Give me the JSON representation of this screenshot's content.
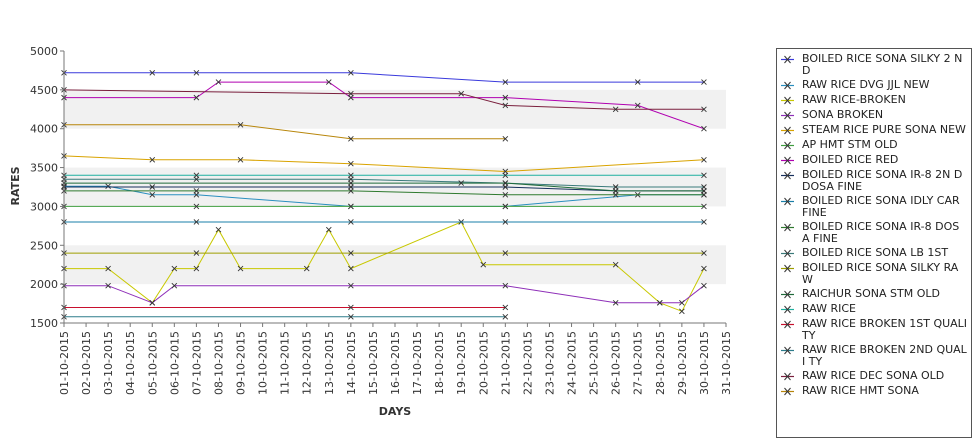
{
  "chart_data": {
    "type": "line",
    "title": "",
    "xlabel": "DAYS",
    "ylabel": "RATES",
    "ylim": [
      1500,
      5000
    ],
    "yticks": [
      1500,
      2000,
      2500,
      3000,
      3500,
      4000,
      4500,
      5000
    ],
    "x_tick_labels": [
      "01-10-2015",
      "02-10-2015",
      "03-10-2015",
      "04-10-2015",
      "05-10-2015",
      "06-10-2015",
      "07-10-2015",
      "08-10-2015",
      "09-10-2015",
      "10-10-2015",
      "11-10-2015",
      "12-10-2015",
      "13-10-2015",
      "14-10-2015",
      "15-10-2015",
      "16-10-2015",
      "17-10-2015",
      "18-10-2015",
      "19-10-2015",
      "20-10-2015",
      "21-10-2015",
      "22-10-2015",
      "23-10-2015",
      "24-10-2015",
      "25-10-2015",
      "26-10-2015",
      "27-10-2015",
      "28-10-2015",
      "29-10-2015",
      "30-10-2015",
      "31-10-2015"
    ],
    "x_unit": "day of October 2015",
    "grid": "alternating horizontal bands",
    "legend_position": "right",
    "series": [
      {
        "name": "BOILED RICE SONA SILKY 2 ND",
        "color": "#3a3adc",
        "days": [
          1,
          5,
          7,
          14,
          21,
          27,
          30
        ],
        "values": [
          4720,
          4720,
          4720,
          4720,
          4600,
          4600,
          4600
        ]
      },
      {
        "name": "RAW RICE DVG JJL NEW",
        "color": "#2a8fbf",
        "days": [
          1,
          3,
          5,
          7,
          14,
          21,
          27,
          30
        ],
        "values": [
          3260,
          3260,
          3150,
          3150,
          3000,
          3000,
          3150,
          3150
        ]
      },
      {
        "name": "RAW RICE-BROKEN",
        "color": "#c8c800",
        "days": [
          1,
          3,
          5,
          6,
          7,
          8,
          9,
          12,
          13,
          14,
          19,
          20,
          26,
          28,
          29,
          30
        ],
        "values": [
          2200,
          2200,
          1760,
          2200,
          2200,
          2700,
          2200,
          2200,
          2700,
          2200,
          2800,
          2250,
          2250,
          1760,
          1650,
          2200
        ]
      },
      {
        "name": "SONA BROKEN",
        "color": "#8e2fb8",
        "days": [
          1,
          3,
          5,
          6,
          14,
          21,
          26,
          28,
          29,
          30
        ],
        "values": [
          1980,
          1980,
          1760,
          1980,
          1980,
          1980,
          1760,
          1760,
          1760,
          1980
        ]
      },
      {
        "name": "STEAM RICE PURE SONA NEW",
        "color": "#d9a300",
        "days": [
          1,
          5,
          9,
          14,
          21,
          30
        ],
        "values": [
          3650,
          3600,
          3600,
          3550,
          3450,
          3600
        ]
      },
      {
        "name": "AP HMT STM OLD",
        "color": "#3f9e3f",
        "days": [
          1,
          7,
          14,
          21,
          30
        ],
        "values": [
          3000,
          3000,
          3000,
          3000,
          3000
        ]
      },
      {
        "name": "BOILED RICE RED",
        "color": "#b000b0",
        "days": [
          1,
          7,
          8,
          13,
          14,
          21,
          27,
          30
        ],
        "values": [
          4400,
          4400,
          4600,
          4600,
          4400,
          4400,
          4300,
          4000
        ]
      },
      {
        "name": "BOILED RICE SONA IR-8 2ND DOSA FINE",
        "color": "#16305c",
        "days": [
          1,
          5,
          14,
          21,
          26,
          30
        ],
        "values": [
          3250,
          3250,
          3250,
          3250,
          3200,
          3200
        ]
      },
      {
        "name": "BOILED RICE SONA IDLY CAR FINE",
        "color": "#1a7fa8",
        "days": [
          1,
          7,
          14,
          21,
          30
        ],
        "values": [
          2800,
          2800,
          2800,
          2800,
          2800
        ]
      },
      {
        "name": "BOILED RICE SONA IR-8 DOSA FINE",
        "color": "#2f7a2f",
        "days": [
          1,
          7,
          14,
          21,
          26,
          30
        ],
        "values": [
          3200,
          3200,
          3200,
          3150,
          3150,
          3150
        ]
      },
      {
        "name": "BOILED RICE SONA LB 1ST",
        "color": "#3a7a7a",
        "days": [
          1,
          7,
          14,
          21,
          26,
          30
        ],
        "values": [
          3350,
          3350,
          3350,
          3300,
          3250,
          3250
        ]
      },
      {
        "name": "BOILED RICE SONA SILKY RAW",
        "color": "#9e9e00",
        "days": [
          1,
          7,
          14,
          21,
          30
        ],
        "values": [
          2400,
          2400,
          2400,
          2400,
          2400
        ]
      },
      {
        "name": "RAICHUR SONA STM OLD",
        "color": "#1f6b3a",
        "days": [
          1,
          14,
          19,
          21,
          26,
          30
        ],
        "values": [
          3300,
          3300,
          3300,
          3300,
          3200,
          3200
        ]
      },
      {
        "name": "RAW RICE",
        "color": "#1fb0a0",
        "days": [
          1,
          7,
          14,
          21,
          30
        ],
        "values": [
          3400,
          3400,
          3400,
          3400,
          3400
        ]
      },
      {
        "name": "RAW RICE BROKEN 1ST QUALITY",
        "color": "#c8102e",
        "days": [
          1,
          14,
          21
        ],
        "values": [
          1700,
          1700,
          1700
        ]
      },
      {
        "name": "RAW RICE BROKEN 2ND QUALITY",
        "color": "#2e7d8c",
        "days": [
          1,
          14,
          21
        ],
        "values": [
          1580,
          1580,
          1580
        ]
      },
      {
        "name": "RAW RICE DEC SONA OLD",
        "color": "#7a1f3d",
        "days": [
          1,
          14,
          19,
          21,
          26,
          30
        ],
        "values": [
          4500,
          4450,
          4450,
          4300,
          4250,
          4250
        ]
      },
      {
        "name": "RAW RICE HMT SONA",
        "color": "#b8860b",
        "days": [
          1,
          9,
          14,
          21
        ],
        "values": [
          4050,
          4050,
          3870,
          3870
        ]
      }
    ]
  },
  "legend": {
    "items": [
      {
        "label": "BOILED RICE SONA SILKY 2 ND",
        "color": "#3a3adc"
      },
      {
        "label": "RAW RICE DVG JJL NEW",
        "color": "#2a8fbf"
      },
      {
        "label": "RAW RICE-BROKEN",
        "color": "#c8c800"
      },
      {
        "label": "SONA BROKEN",
        "color": "#8e2fb8"
      },
      {
        "label": "STEAM RICE PURE SONA NEW",
        "color": "#d9a300"
      },
      {
        "label": "AP HMT STM OLD",
        "color": "#3f9e3f"
      },
      {
        "label": "BOILED RICE RED",
        "color": "#b000b0"
      },
      {
        "label": "BOILED RICE SONA IR-8 2N D DOSA FINE",
        "color": "#16305c"
      },
      {
        "label": "BOILED RICE SONA IDLY CAR FINE",
        "color": "#1a7fa8"
      },
      {
        "label": "BOILED RICE SONA IR-8 DOS A FINE",
        "color": "#2f7a2f"
      },
      {
        "label": "BOILED RICE SONA LB 1ST",
        "color": "#3a7a7a"
      },
      {
        "label": "BOILED RICE SONA SILKY RA W",
        "color": "#9e9e00"
      },
      {
        "label": "RAICHUR SONA STM OLD",
        "color": "#1f6b3a"
      },
      {
        "label": "RAW RICE",
        "color": "#1fb0a0"
      },
      {
        "label": "RAW RICE BROKEN 1ST QUALI TY",
        "color": "#c8102e"
      },
      {
        "label": "RAW RICE BROKEN 2ND QUALI TY",
        "color": "#2e7d8c"
      },
      {
        "label": "RAW RICE DEC SONA OLD",
        "color": "#7a1f3d"
      },
      {
        "label": "RAW RICE HMT SONA",
        "color": "#b8860b"
      }
    ]
  }
}
